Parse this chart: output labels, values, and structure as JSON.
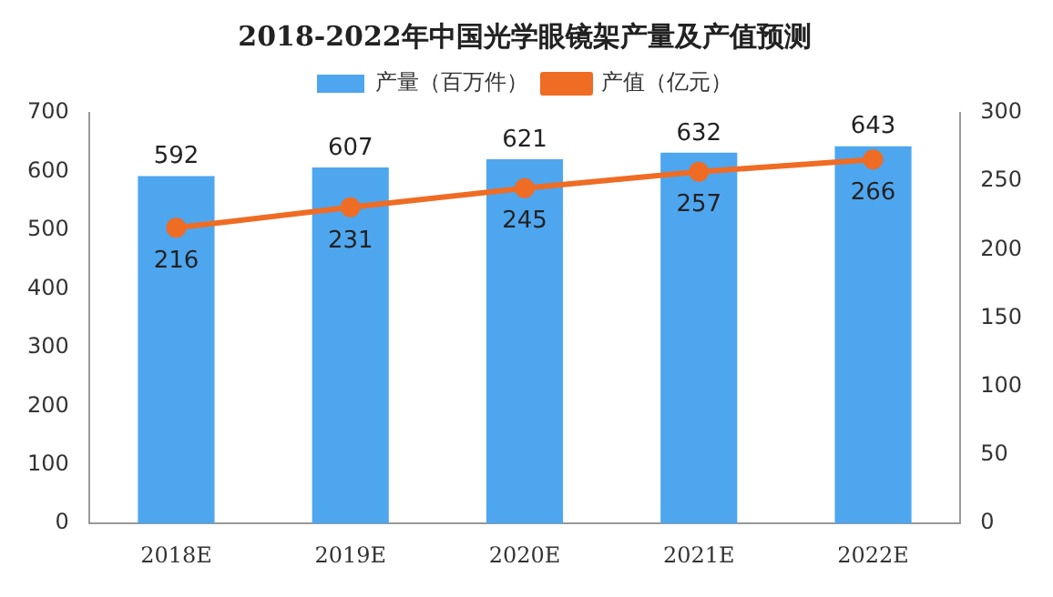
{
  "chart_data": {
    "type": "bar",
    "title": "2018-2022年中国光学眼镜架产量及产值预测",
    "categories": [
      "2018E",
      "2019E",
      "2020E",
      "2021E",
      "2022E"
    ],
    "series": [
      {
        "name": "产量（百万件）",
        "color": "#4ea6ef",
        "values": [
          592,
          607,
          621,
          632,
          643
        ]
      },
      {
        "name": "产值（亿元）",
        "type": "line",
        "axis": "y2",
        "color": "#ef6c24",
        "marker": "circle",
        "values": [
          216,
          231,
          245,
          257,
          266
        ]
      }
    ],
    "ylim": [
      0,
      700
    ],
    "yticks": [
      0,
      100,
      200,
      300,
      400,
      500,
      600,
      700
    ],
    "y2lim": [
      0,
      300
    ],
    "y2ticks": [
      0,
      50,
      100,
      150,
      200,
      250,
      300
    ],
    "legend": "top",
    "data_labels": true,
    "grid": false
  }
}
